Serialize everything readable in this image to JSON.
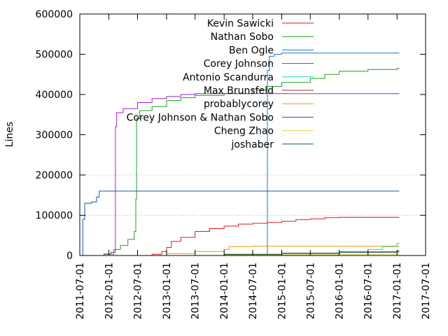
{
  "chart_data": {
    "type": "line",
    "ylabel": "Lines",
    "xlabel": "",
    "title": "",
    "legend_position": "top-center",
    "grid": "horizontal-dotted",
    "xlim": [
      "2011-07-01",
      "2017-07-01"
    ],
    "ylim": [
      0,
      600000
    ],
    "x_ticks": [
      "2011-07-01",
      "2012-01-01",
      "2012-07-01",
      "2013-01-01",
      "2013-07-01",
      "2014-01-01",
      "2014-07-01",
      "2015-01-01",
      "2015-07-01",
      "2016-01-01",
      "2016-07-01",
      "2017-01-01",
      "2017-07-01"
    ],
    "y_ticks": [
      0,
      100000,
      200000,
      300000,
      400000,
      500000,
      600000
    ],
    "series": [
      {
        "name": "Kevin Sawicki",
        "color": "#e41a1c",
        "points": [
          [
            "2012-07-15",
            0
          ],
          [
            "2012-10-01",
            3000
          ],
          [
            "2012-12-01",
            10000
          ],
          [
            "2013-01-01",
            20000
          ],
          [
            "2013-02-01",
            35000
          ],
          [
            "2013-04-01",
            45000
          ],
          [
            "2013-07-01",
            60000
          ],
          [
            "2013-10-01",
            67000
          ],
          [
            "2014-01-01",
            73000
          ],
          [
            "2014-04-01",
            78000
          ],
          [
            "2014-07-01",
            80000
          ],
          [
            "2014-10-01",
            82000
          ],
          [
            "2015-01-01",
            85000
          ],
          [
            "2015-04-01",
            89000
          ],
          [
            "2015-07-01",
            91000
          ],
          [
            "2015-10-01",
            94000
          ],
          [
            "2016-01-01",
            95000
          ],
          [
            "2017-01-01",
            95000
          ],
          [
            "2017-01-15",
            95000
          ]
        ]
      },
      {
        "name": "Nathan Sobo",
        "color": "#1aa31a",
        "points": [
          [
            "2011-09-15",
            0
          ],
          [
            "2011-12-01",
            3000
          ],
          [
            "2012-02-01",
            15000
          ],
          [
            "2012-03-15",
            25000
          ],
          [
            "2012-05-01",
            40000
          ],
          [
            "2012-06-10",
            60000
          ],
          [
            "2012-06-20",
            140000
          ],
          [
            "2012-06-25",
            340000
          ],
          [
            "2012-07-15",
            360000
          ],
          [
            "2012-10-01",
            370000
          ],
          [
            "2013-01-01",
            385000
          ],
          [
            "2013-04-01",
            392000
          ],
          [
            "2013-07-01",
            398000
          ],
          [
            "2014-01-01",
            402000
          ],
          [
            "2014-07-01",
            412000
          ],
          [
            "2014-10-01",
            420000
          ],
          [
            "2015-01-01",
            430000
          ],
          [
            "2015-07-01",
            440000
          ],
          [
            "2015-10-01",
            450000
          ],
          [
            "2016-01-01",
            458000
          ],
          [
            "2016-07-01",
            462000
          ],
          [
            "2017-01-01",
            465000
          ],
          [
            "2017-01-15",
            465000
          ]
        ]
      },
      {
        "name": "Ben Ogle",
        "color": "#1a76c8",
        "points": [
          [
            "2014-09-20",
            0
          ],
          [
            "2014-10-01",
            8000
          ],
          [
            "2014-10-02",
            460000
          ],
          [
            "2014-10-15",
            495000
          ],
          [
            "2014-11-15",
            500000
          ],
          [
            "2015-01-01",
            503000
          ],
          [
            "2017-01-01",
            503000
          ],
          [
            "2017-01-15",
            503000
          ]
        ]
      },
      {
        "name": "Corey Johnson",
        "color": "#a020c8",
        "points": [
          [
            "2011-10-01",
            0
          ],
          [
            "2011-12-01",
            4000
          ],
          [
            "2012-01-15",
            8000
          ],
          [
            "2012-02-10",
            10000
          ],
          [
            "2012-02-12",
            320000
          ],
          [
            "2012-02-20",
            355000
          ],
          [
            "2012-04-01",
            365000
          ],
          [
            "2012-07-01",
            380000
          ],
          [
            "2012-10-01",
            390000
          ],
          [
            "2013-01-01",
            395000
          ],
          [
            "2013-04-01",
            400000
          ],
          [
            "2013-07-01",
            402000
          ],
          [
            "2017-01-01",
            402000
          ],
          [
            "2017-01-15",
            402000
          ]
        ]
      },
      {
        "name": "Antonio Scandurra",
        "color": "#20d0d8",
        "points": [
          [
            "2015-07-01",
            0
          ],
          [
            "2016-01-01",
            8000
          ],
          [
            "2016-07-01",
            15000
          ],
          [
            "2016-10-01",
            22000
          ],
          [
            "2017-01-01",
            30000
          ],
          [
            "2017-01-15",
            30000
          ]
        ]
      },
      {
        "name": "Max Brunsfeld",
        "color": "#a0302a",
        "points": [
          [
            "2013-06-01",
            0
          ],
          [
            "2014-01-01",
            2000
          ],
          [
            "2015-01-01",
            5000
          ],
          [
            "2016-01-01",
            9000
          ],
          [
            "2017-01-01",
            12000
          ],
          [
            "2017-01-15",
            12000
          ]
        ]
      },
      {
        "name": "probablycorey",
        "color": "#e0a000",
        "points": [
          [
            "2012-10-01",
            0
          ],
          [
            "2013-01-01",
            5000
          ],
          [
            "2013-07-01",
            10000
          ],
          [
            "2014-01-01",
            15000
          ],
          [
            "2014-02-01",
            22000
          ],
          [
            "2014-07-01",
            23000
          ],
          [
            "2017-01-01",
            23000
          ],
          [
            "2017-01-15",
            23000
          ]
        ]
      },
      {
        "name": "Corey Johnson & Nathan Sobo",
        "color": "#2050b8",
        "points": [
          [
            "2011-07-15",
            0
          ],
          [
            "2011-07-20",
            90000
          ],
          [
            "2011-08-01",
            130000
          ],
          [
            "2011-09-15",
            133000
          ],
          [
            "2011-10-15",
            145000
          ],
          [
            "2011-11-01",
            160000
          ],
          [
            "2017-01-01",
            160000
          ],
          [
            "2017-01-15",
            160000
          ]
        ]
      },
      {
        "name": "Cheng Zhao",
        "color": "#e8d050",
        "points": [
          [
            "2013-02-01",
            0
          ],
          [
            "2014-01-01",
            1000
          ],
          [
            "2015-01-01",
            2000
          ],
          [
            "2016-01-01",
            3000
          ],
          [
            "2017-01-01",
            5000
          ],
          [
            "2017-01-15",
            5000
          ]
        ]
      },
      {
        "name": "joshaber",
        "color": "#106030",
        "points": [
          [
            "2013-06-01",
            0
          ],
          [
            "2014-01-01",
            3000
          ],
          [
            "2015-01-01",
            6000
          ],
          [
            "2016-01-01",
            8000
          ],
          [
            "2017-01-01",
            9000
          ],
          [
            "2017-01-15",
            9000
          ]
        ]
      }
    ]
  }
}
